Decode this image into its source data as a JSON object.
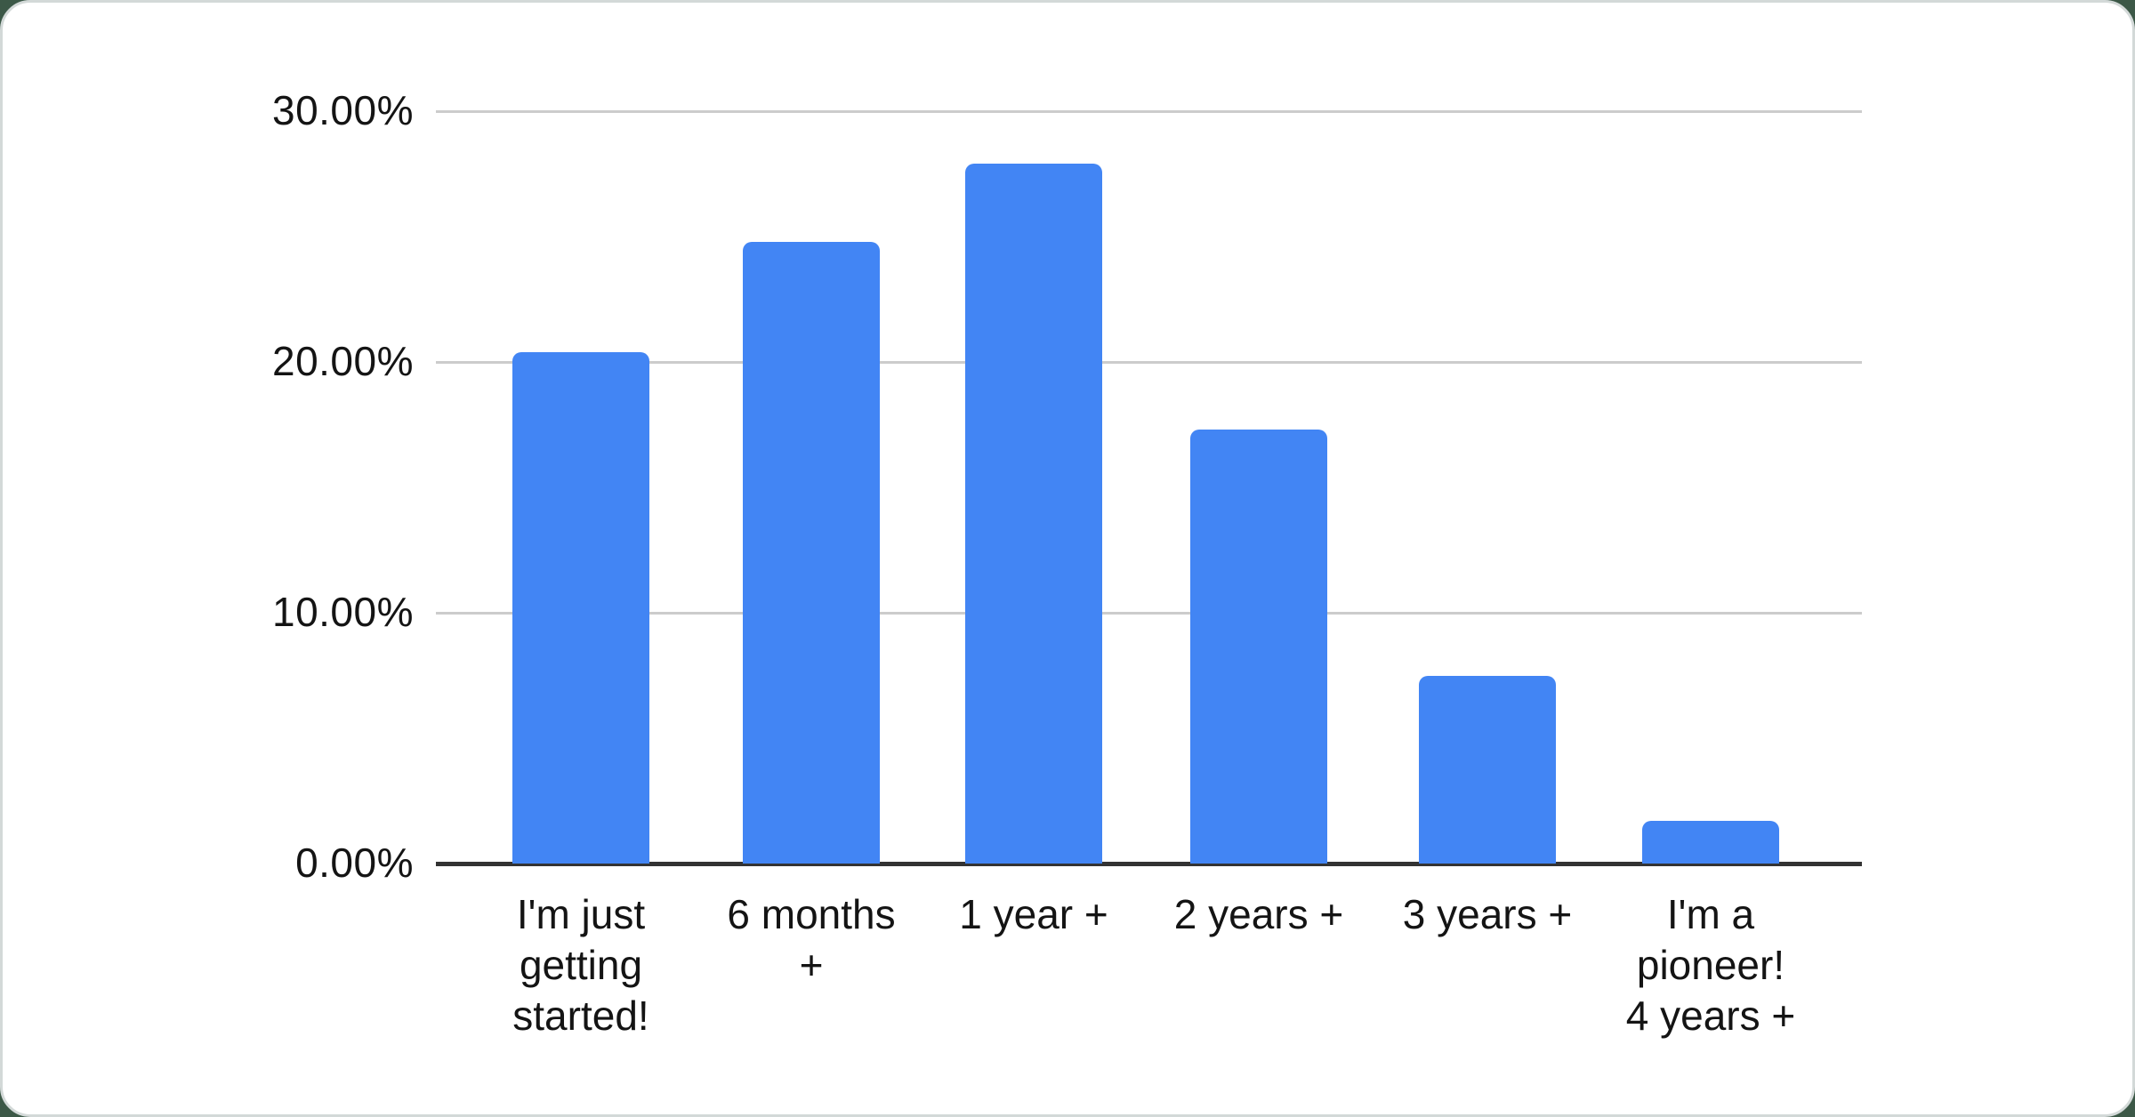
{
  "page": {
    "background_color": "#3c5847",
    "card_color": "#ffffff",
    "card_border_color": "#d3d9d8"
  },
  "chart_data": {
    "type": "bar",
    "title": "",
    "categories": [
      "I'm just getting started!",
      "6 months +",
      "1 year +",
      "2 years +",
      "3 years +",
      "I'm a pioneer! 4 years +"
    ],
    "category_display": [
      "I'm just\ngetting\nstarted!",
      "6 months\n+",
      "1 year +",
      "2 years +",
      "3 years +",
      "I'm a\npioneer!\n4 years +"
    ],
    "values": [
      20.4,
      24.8,
      27.9,
      17.3,
      7.5,
      1.7
    ],
    "value_unit": "%",
    "ylim": [
      0,
      30
    ],
    "yticks": [
      0,
      10,
      20,
      30
    ],
    "ytick_labels": [
      "0.00%",
      "10.00%",
      "20.00%",
      "30.00%"
    ],
    "xlabel": "",
    "ylabel": "",
    "bar_color": "#4285F4",
    "gridline_color": "#cccccc",
    "axis_color": "#333333",
    "grid": true,
    "legend": "none"
  }
}
